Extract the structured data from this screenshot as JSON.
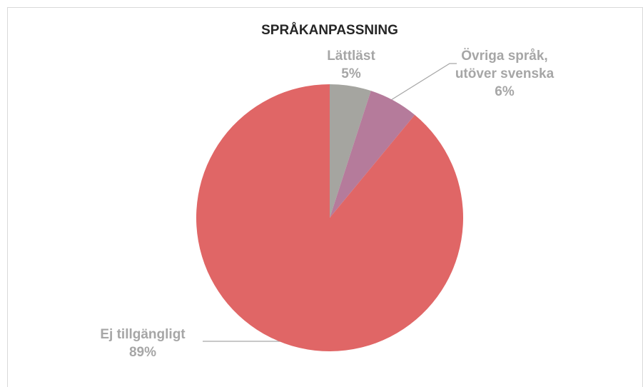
{
  "chart_data": {
    "type": "pie",
    "title": "SPRÅKANPASSNING",
    "categories": [
      "Lättläst",
      "Övriga språk, utöver svenska",
      "Ej tillgängligt"
    ],
    "values": [
      5,
      6,
      89
    ],
    "value_labels": [
      "5%",
      "6%",
      "89%"
    ],
    "colors": [
      "#a5a5a0",
      "#b57b9b",
      "#e06666"
    ]
  }
}
